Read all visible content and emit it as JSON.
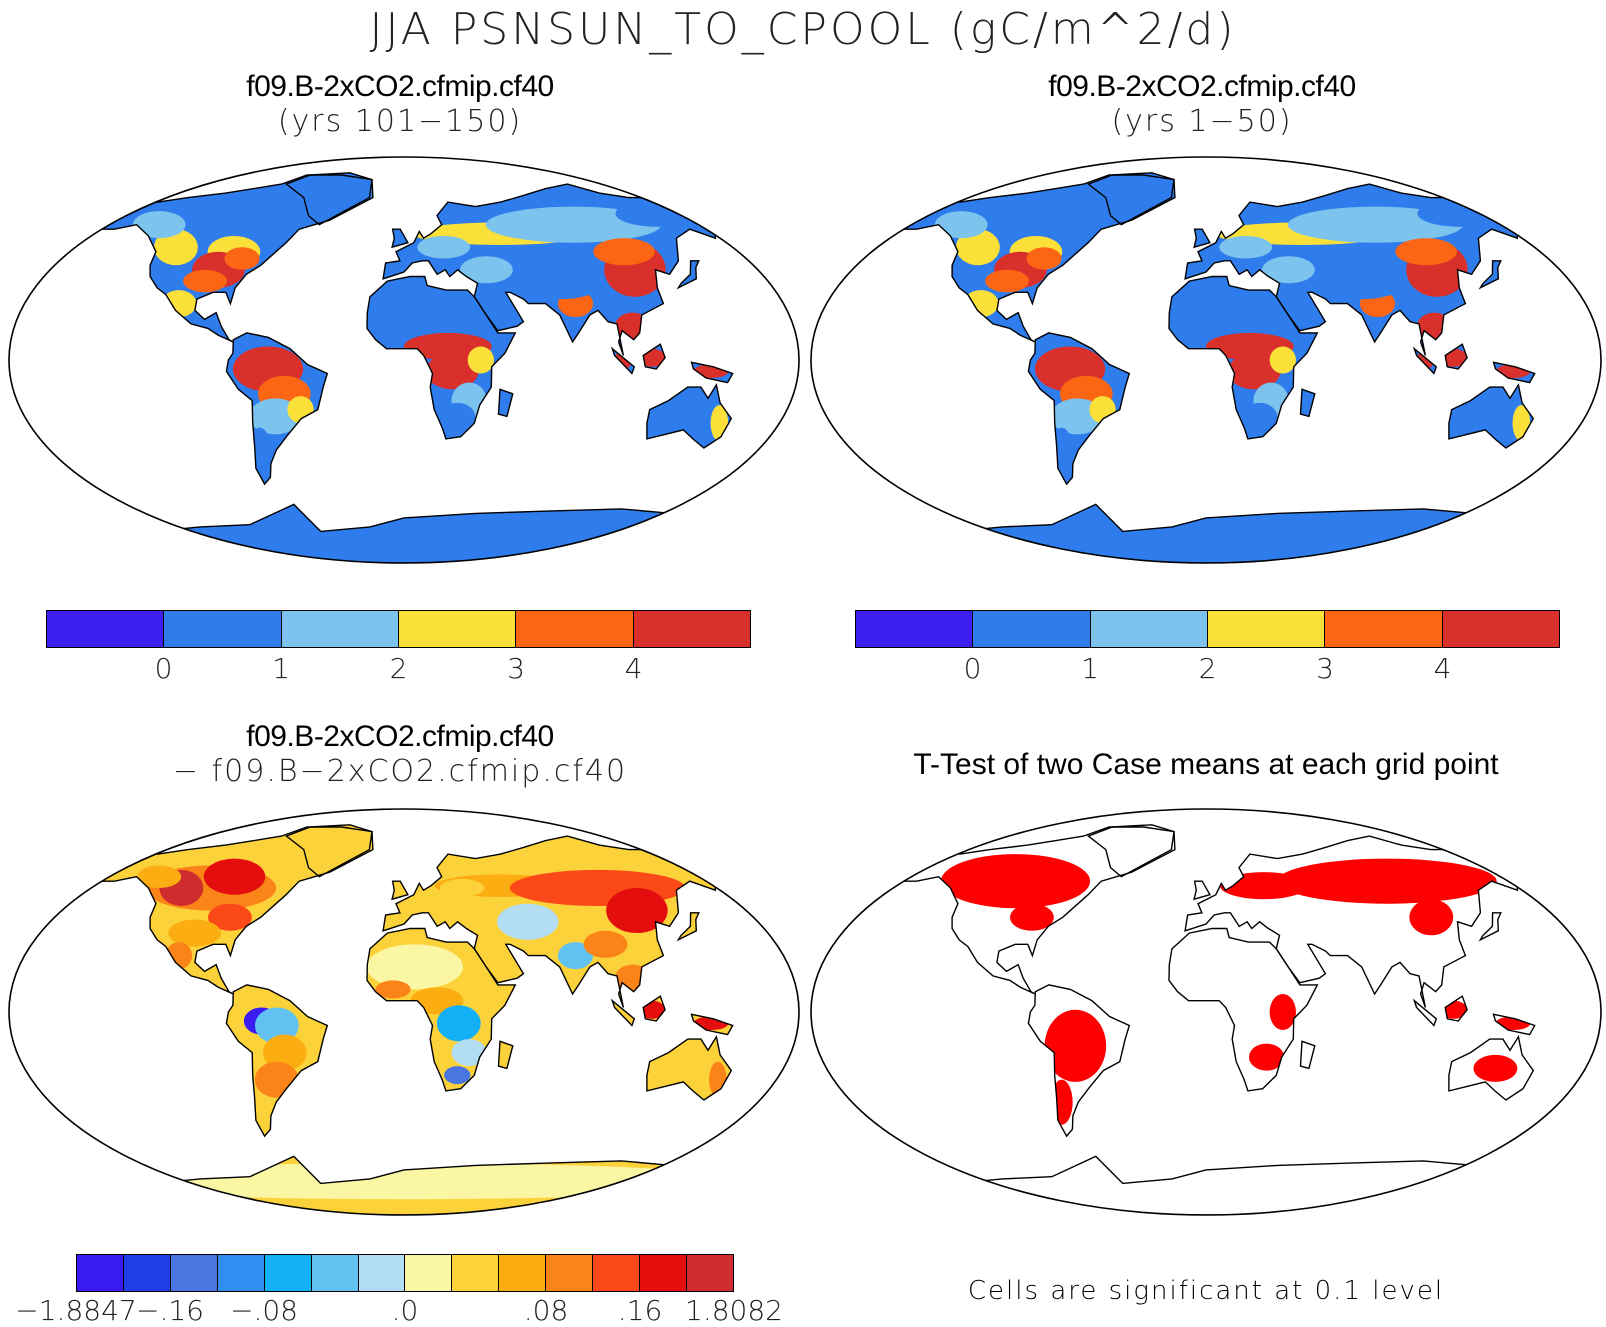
{
  "main_title": "JJA PSNSUN_TO_CPOOL (gC/m^2/d)",
  "panels": {
    "top_left": {
      "line1": "f09.B-2xCO2.cfmip.cf40",
      "line2": "(yrs 101−150)"
    },
    "top_right": {
      "line1": "f09.B-2xCO2.cfmip.cf40",
      "line2": "(yrs 1−50)"
    },
    "bottom_left": {
      "line1": "f09.B-2xCO2.cfmip.cf40",
      "line2": "− f09.B−2xCO2.cfmip.cf40"
    },
    "bottom_right": {
      "title": "T-Test of two Case means at each grid point",
      "note": "Cells are significant at 0.1 level"
    }
  },
  "colorbar_abs": {
    "colors": [
      "#3d1ff0",
      "#2f7cec",
      "#7cc3ee",
      "#fbe03a",
      "#fb6514",
      "#d9302c"
    ],
    "ticks": [
      "0",
      "1",
      "2",
      "3",
      "4"
    ]
  },
  "colorbar_diff": {
    "colors": [
      "#3a1bf2",
      "#1f3ee6",
      "#4a76e2",
      "#2f8ff0",
      "#14b0f6",
      "#62c2f2",
      "#b3ddf3",
      "#fbf6a4",
      "#fbd23a",
      "#fbad12",
      "#fb8418",
      "#fb4a18",
      "#e50e0e",
      "#cf2d2d"
    ],
    "ticks": [
      "−1.8847",
      "−.16",
      "−.08",
      ".0",
      ".08",
      ".16",
      "1.8082"
    ]
  },
  "significance_color": "#ff0000"
}
